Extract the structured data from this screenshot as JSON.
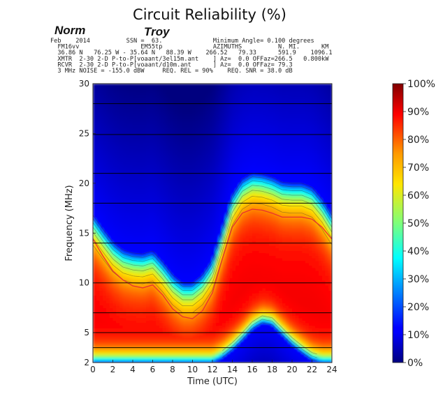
{
  "chart_data": {
    "type": "heatmap",
    "title": "Circuit Reliability (%)",
    "annotations": {
      "transmitter_label": "Norm",
      "receiver_label": "Troy"
    },
    "header_lines": [
      "Feb    2014          SSN =  63.              Minimum Angle= 0.100 degrees",
      "  FM16vv                 EM55tp              AZIMUTHS          N. MI.      KM",
      "  36.86 N   76.25 W - 35.64 N   88.39 W    266.52   79.33      591.9    1096.1",
      "  XMTR  2-30 2-D P-to-P[voaant/3el15m.ant    ] Az=  0.0 OFFaz=266.5   0.800kW",
      "  RCVR  2-30 2-D P-to-P[voaant/d10m.ant      ] Az=  0.0 OFFaz= 79.3",
      "  3 MHz NOISE = -155.0 dBW     REQ. REL = 90%    REQ. SNR = 38.0 dB"
    ],
    "xlabel": "Time (UTC)",
    "ylabel": "Frequency (MHz)",
    "xlim": [
      0,
      24
    ],
    "ylim": [
      2,
      30
    ],
    "x_ticks": [
      0,
      2,
      4,
      6,
      8,
      10,
      12,
      14,
      16,
      18,
      20,
      22,
      24
    ],
    "y_ticks": [
      2,
      5,
      10,
      15,
      20,
      25,
      30
    ],
    "grid_frequencies_mhz": [
      3.5,
      5,
      7,
      10,
      14,
      18,
      21,
      24.9,
      28
    ],
    "colorbar": {
      "label_ticks": [
        "0%",
        "10%",
        "20%",
        "30%",
        "40%",
        "50%",
        "60%",
        "70%",
        "80%",
        "90%",
        "100%"
      ],
      "colormap": "jet",
      "range": [
        0,
        100
      ]
    },
    "fof2_contour_mhz": [
      [
        0,
        14.4
      ],
      [
        1,
        12.7
      ],
      [
        2,
        11.2
      ],
      [
        3,
        10.3
      ],
      [
        4,
        9.7
      ],
      [
        5,
        9.5
      ],
      [
        6,
        9.8
      ],
      [
        7,
        8.8
      ],
      [
        8,
        7.4
      ],
      [
        9,
        6.6
      ],
      [
        10,
        6.4
      ],
      [
        11,
        7.2
      ],
      [
        12,
        9.0
      ],
      [
        13,
        12.4
      ],
      [
        14,
        15.6
      ],
      [
        15,
        17.0
      ],
      [
        16,
        17.4
      ],
      [
        17,
        17.3
      ],
      [
        18,
        17.0
      ],
      [
        19,
        16.6
      ],
      [
        20,
        16.6
      ],
      [
        21,
        16.6
      ],
      [
        22,
        16.4
      ],
      [
        23,
        15.6
      ],
      [
        24,
        14.4
      ]
    ],
    "series": [
      {
        "name": "muf_upper_edge_mhz",
        "x": [
          0,
          1,
          2,
          3,
          4,
          5,
          6,
          7,
          8,
          9,
          10,
          11,
          12,
          13,
          14,
          15,
          16,
          17,
          18,
          19,
          20,
          21,
          22,
          23,
          24
        ],
        "values": [
          16.8,
          15.4,
          14.1,
          13.3,
          13.0,
          12.9,
          13.2,
          12.1,
          10.8,
          10.0,
          10.0,
          10.8,
          12.3,
          15.5,
          18.8,
          20.4,
          21.0,
          20.9,
          20.6,
          20.1,
          20.0,
          20.0,
          19.6,
          18.4,
          16.8
        ]
      },
      {
        "name": "lower_edge_mhz",
        "x": [
          0,
          2,
          4,
          6,
          8,
          10,
          11,
          12,
          13,
          14,
          15,
          16,
          17,
          18,
          19,
          20,
          21,
          22,
          23,
          24
        ],
        "values": [
          2,
          2,
          2,
          2,
          2,
          2,
          2,
          2,
          2.5,
          3.3,
          4.3,
          5.4,
          6.0,
          5.8,
          4.8,
          3.8,
          3.0,
          2.3,
          2,
          2
        ]
      }
    ]
  }
}
